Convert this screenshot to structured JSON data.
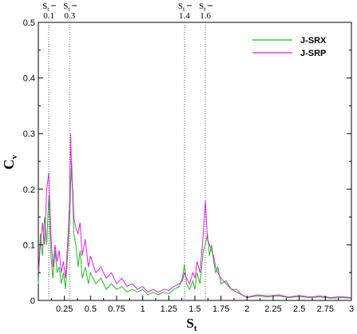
{
  "chart_data": {
    "type": "line",
    "xlabel": "S",
    "xlabel_sub": "t",
    "ylabel": "C",
    "ylabel_sub": "v",
    "xlim": [
      0,
      3
    ],
    "ylim": [
      0,
      0.5
    ],
    "x_ticks": [
      "0.25",
      "0.5",
      "0.75",
      "1",
      "1.25",
      "1.5",
      "1.75",
      "2",
      "2.25",
      "2.5",
      "2.75",
      "3"
    ],
    "y_ticks": [
      "0",
      "0.1",
      "0.2",
      "0.3",
      "0.4",
      "0.5"
    ],
    "grid": false,
    "legend_position": "top-right",
    "reference_lines": [
      {
        "x": 0.1,
        "label_top": "S",
        "label_sub": "t",
        "label_value": "0.1"
      },
      {
        "x": 0.3,
        "label_top": "S",
        "label_sub": "t",
        "label_value": "0.3"
      },
      {
        "x": 1.4,
        "label_top": "S",
        "label_sub": "t",
        "label_value": "1.4"
      },
      {
        "x": 1.6,
        "label_top": "S",
        "label_sub": "t",
        "label_value": "1.6"
      }
    ],
    "series": [
      {
        "name": "J-SRX",
        "color": "#22bb22",
        "points": [
          [
            0.0,
            0.03
          ],
          [
            0.02,
            0.12
          ],
          [
            0.04,
            0.08
          ],
          [
            0.06,
            0.15
          ],
          [
            0.08,
            0.1
          ],
          [
            0.1,
            0.19
          ],
          [
            0.12,
            0.08
          ],
          [
            0.14,
            0.04
          ],
          [
            0.16,
            0.09
          ],
          [
            0.18,
            0.05
          ],
          [
            0.2,
            0.06
          ],
          [
            0.22,
            0.03
          ],
          [
            0.24,
            0.05
          ],
          [
            0.26,
            0.02
          ],
          [
            0.28,
            0.08
          ],
          [
            0.3,
            0.14
          ],
          [
            0.31,
            0.21
          ],
          [
            0.32,
            0.25
          ],
          [
            0.33,
            0.18
          ],
          [
            0.34,
            0.12
          ],
          [
            0.36,
            0.1
          ],
          [
            0.38,
            0.06
          ],
          [
            0.4,
            0.09
          ],
          [
            0.42,
            0.04
          ],
          [
            0.45,
            0.06
          ],
          [
            0.48,
            0.03
          ],
          [
            0.5,
            0.05
          ],
          [
            0.55,
            0.03
          ],
          [
            0.6,
            0.04
          ],
          [
            0.65,
            0.02
          ],
          [
            0.7,
            0.03
          ],
          [
            0.75,
            0.02
          ],
          [
            0.8,
            0.025
          ],
          [
            0.85,
            0.015
          ],
          [
            0.9,
            0.02
          ],
          [
            0.95,
            0.015
          ],
          [
            1.0,
            0.02
          ],
          [
            1.05,
            0.01
          ],
          [
            1.1,
            0.015
          ],
          [
            1.15,
            0.01
          ],
          [
            1.2,
            0.015
          ],
          [
            1.25,
            0.012
          ],
          [
            1.3,
            0.02
          ],
          [
            1.35,
            0.025
          ],
          [
            1.38,
            0.04
          ],
          [
            1.4,
            0.065
          ],
          [
            1.42,
            0.03
          ],
          [
            1.45,
            0.02
          ],
          [
            1.48,
            0.035
          ],
          [
            1.5,
            0.02
          ],
          [
            1.52,
            0.05
          ],
          [
            1.55,
            0.03
          ],
          [
            1.58,
            0.09
          ],
          [
            1.6,
            0.1
          ],
          [
            1.62,
            0.12
          ],
          [
            1.64,
            0.08
          ],
          [
            1.66,
            0.1
          ],
          [
            1.68,
            0.07
          ],
          [
            1.7,
            0.05
          ],
          [
            1.72,
            0.06
          ],
          [
            1.75,
            0.03
          ],
          [
            1.8,
            0.035
          ],
          [
            1.85,
            0.02
          ],
          [
            1.9,
            0.02
          ],
          [
            1.95,
            0.01
          ],
          [
            2.0,
            0.005
          ],
          [
            2.1,
            0.008
          ],
          [
            2.2,
            0.006
          ],
          [
            2.3,
            0.008
          ],
          [
            2.4,
            0.005
          ],
          [
            2.5,
            0.007
          ],
          [
            2.6,
            0.005
          ],
          [
            2.7,
            0.006
          ],
          [
            2.8,
            0.004
          ],
          [
            2.9,
            0.005
          ],
          [
            3.0,
            0.004
          ]
        ]
      },
      {
        "name": "J-SRP",
        "color": "#dd22dd",
        "points": [
          [
            0.0,
            0.05
          ],
          [
            0.02,
            0.1
          ],
          [
            0.04,
            0.14
          ],
          [
            0.06,
            0.1
          ],
          [
            0.08,
            0.2
          ],
          [
            0.1,
            0.23
          ],
          [
            0.12,
            0.12
          ],
          [
            0.14,
            0.06
          ],
          [
            0.16,
            0.1
          ],
          [
            0.18,
            0.07
          ],
          [
            0.2,
            0.09
          ],
          [
            0.22,
            0.05
          ],
          [
            0.24,
            0.07
          ],
          [
            0.26,
            0.04
          ],
          [
            0.28,
            0.1
          ],
          [
            0.3,
            0.18
          ],
          [
            0.31,
            0.3
          ],
          [
            0.32,
            0.22
          ],
          [
            0.33,
            0.2
          ],
          [
            0.34,
            0.15
          ],
          [
            0.36,
            0.13
          ],
          [
            0.38,
            0.12
          ],
          [
            0.4,
            0.14
          ],
          [
            0.42,
            0.08
          ],
          [
            0.45,
            0.11
          ],
          [
            0.48,
            0.06
          ],
          [
            0.5,
            0.08
          ],
          [
            0.55,
            0.05
          ],
          [
            0.6,
            0.06
          ],
          [
            0.65,
            0.04
          ],
          [
            0.7,
            0.05
          ],
          [
            0.75,
            0.03
          ],
          [
            0.8,
            0.04
          ],
          [
            0.85,
            0.025
          ],
          [
            0.9,
            0.03
          ],
          [
            0.95,
            0.02
          ],
          [
            1.0,
            0.025
          ],
          [
            1.05,
            0.015
          ],
          [
            1.1,
            0.02
          ],
          [
            1.15,
            0.015
          ],
          [
            1.2,
            0.02
          ],
          [
            1.25,
            0.018
          ],
          [
            1.3,
            0.025
          ],
          [
            1.35,
            0.03
          ],
          [
            1.38,
            0.035
          ],
          [
            1.4,
            0.05
          ],
          [
            1.42,
            0.04
          ],
          [
            1.45,
            0.03
          ],
          [
            1.48,
            0.05
          ],
          [
            1.5,
            0.04
          ],
          [
            1.52,
            0.07
          ],
          [
            1.55,
            0.05
          ],
          [
            1.58,
            0.12
          ],
          [
            1.6,
            0.18
          ],
          [
            1.62,
            0.11
          ],
          [
            1.64,
            0.1
          ],
          [
            1.66,
            0.09
          ],
          [
            1.68,
            0.08
          ],
          [
            1.7,
            0.06
          ],
          [
            1.72,
            0.05
          ],
          [
            1.75,
            0.04
          ],
          [
            1.8,
            0.03
          ],
          [
            1.85,
            0.02
          ],
          [
            1.9,
            0.015
          ],
          [
            1.95,
            0.01
          ],
          [
            2.0,
            0.006
          ],
          [
            2.1,
            0.01
          ],
          [
            2.2,
            0.008
          ],
          [
            2.3,
            0.01
          ],
          [
            2.4,
            0.006
          ],
          [
            2.5,
            0.009
          ],
          [
            2.6,
            0.006
          ],
          [
            2.7,
            0.008
          ],
          [
            2.8,
            0.005
          ],
          [
            2.9,
            0.007
          ],
          [
            3.0,
            0.005
          ]
        ]
      }
    ]
  }
}
